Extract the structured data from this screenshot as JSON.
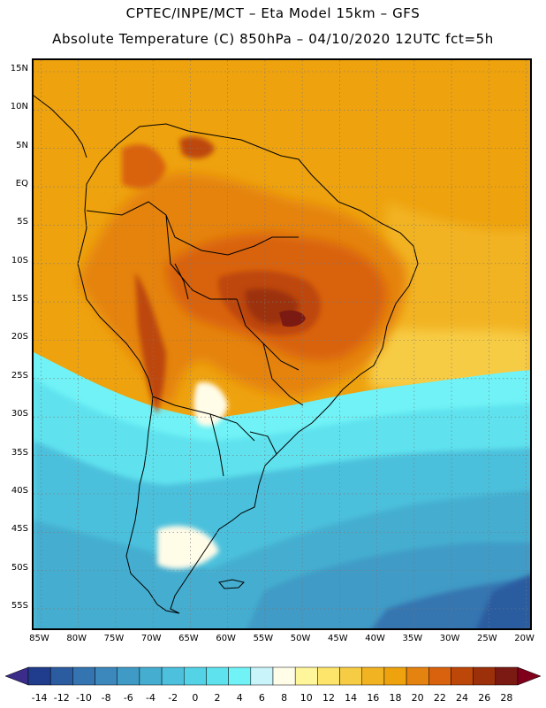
{
  "header": {
    "line1": "CPTEC/INPE/MCT –   Eta Model 15km – GFS",
    "line2": "Absolute Temperature (C) 850hPa – 04/10/2020 12UTC fct=5h"
  },
  "map": {
    "lat_labels": [
      "15N",
      "10N",
      "5N",
      "EQ",
      "5S",
      "10S",
      "15S",
      "20S",
      "25S",
      "30S",
      "35S",
      "40S",
      "45S",
      "50S",
      "55S"
    ],
    "lon_labels": [
      "85W",
      "80W",
      "75W",
      "70W",
      "65W",
      "60W",
      "55W",
      "50W",
      "45W",
      "40W",
      "35W",
      "30W",
      "25W",
      "20W"
    ],
    "extent": {
      "lon_min": -86,
      "lon_max": -19,
      "lat_min": -58,
      "lat_max": 16.5
    }
  },
  "colorbar": {
    "labels": [
      "-14",
      "-12",
      "-10",
      "-8",
      "-6",
      "-4",
      "-2",
      "0",
      "2",
      "4",
      "6",
      "8",
      "10",
      "12",
      "14",
      "16",
      "18",
      "20",
      "22",
      "24",
      "26",
      "28"
    ],
    "colors": [
      "#203c8c",
      "#2c5ca0",
      "#3474b0",
      "#3c88bc",
      "#3f9bc6",
      "#45aed0",
      "#4cc0dc",
      "#54d2e6",
      "#5ee2ee",
      "#70f2f6",
      "#c8f4fa",
      "#fffce8",
      "#fff59a",
      "#fde46a",
      "#f7cc45",
      "#f2b322",
      "#eea20e",
      "#e58310",
      "#d9620e",
      "#bd4708",
      "#9c300a",
      "#7a1a12"
    ],
    "under_color": "#3a2c88",
    "over_color": "#80001c"
  }
}
